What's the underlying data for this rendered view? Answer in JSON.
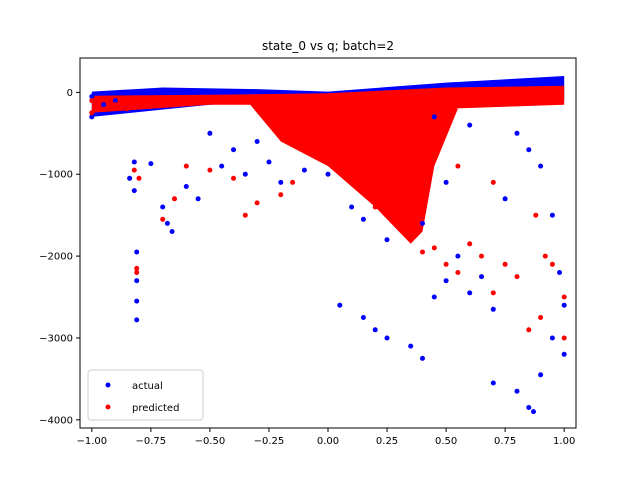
{
  "chart_data": {
    "type": "scatter",
    "title": "state_0 vs q; batch=2",
    "xlabel": "",
    "ylabel": "",
    "xlim": [
      -1.05,
      1.05
    ],
    "ylim": [
      -4100,
      420
    ],
    "xticks": [
      -1.0,
      -0.75,
      -0.5,
      -0.25,
      0.0,
      0.25,
      0.5,
      0.75,
      1.0
    ],
    "xtick_labels": [
      "−1.00",
      "−0.75",
      "−0.50",
      "−0.25",
      "0.00",
      "0.25",
      "0.50",
      "0.75",
      "1.00"
    ],
    "yticks": [
      0,
      -1000,
      -2000,
      -3000,
      -4000
    ],
    "ytick_labels": [
      "0",
      "−1000",
      "−2000",
      "−3000",
      "−4000"
    ],
    "legend_position": "lower-left",
    "grid": false,
    "series": [
      {
        "name": "actual",
        "color": "#0000ff",
        "points": [
          [
            -1.0,
            -50
          ],
          [
            -1.0,
            -300
          ],
          [
            -0.95,
            -150
          ],
          [
            -0.9,
            -100
          ],
          [
            -0.85,
            -200
          ],
          [
            -0.82,
            -850
          ],
          [
            -0.84,
            -1050
          ],
          [
            -0.82,
            -1200
          ],
          [
            -0.81,
            -1950
          ],
          [
            -0.81,
            -2300
          ],
          [
            -0.81,
            -2550
          ],
          [
            -0.81,
            -2780
          ],
          [
            -0.75,
            -870
          ],
          [
            -0.7,
            -1400
          ],
          [
            -0.68,
            -1600
          ],
          [
            -0.66,
            -1700
          ],
          [
            -0.6,
            -1150
          ],
          [
            -0.55,
            -1300
          ],
          [
            -0.5,
            -500
          ],
          [
            -0.45,
            -900
          ],
          [
            -0.4,
            -700
          ],
          [
            -0.35,
            -1000
          ],
          [
            -0.3,
            -600
          ],
          [
            -0.25,
            -850
          ],
          [
            -0.2,
            -1100
          ],
          [
            -0.1,
            -950
          ],
          [
            0.0,
            -1000
          ],
          [
            0.1,
            -1400
          ],
          [
            0.15,
            -1550
          ],
          [
            0.25,
            -1800
          ],
          [
            0.05,
            -2600
          ],
          [
            0.15,
            -2750
          ],
          [
            0.2,
            -2900
          ],
          [
            0.25,
            -3000
          ],
          [
            0.35,
            -3100
          ],
          [
            0.4,
            -3250
          ],
          [
            0.45,
            -2500
          ],
          [
            0.5,
            -2300
          ],
          [
            0.55,
            -2000
          ],
          [
            0.6,
            -2450
          ],
          [
            0.65,
            -2250
          ],
          [
            0.7,
            -2650
          ],
          [
            0.7,
            -3550
          ],
          [
            0.8,
            -3650
          ],
          [
            0.85,
            -3850
          ],
          [
            0.87,
            -3900
          ],
          [
            0.9,
            -3450
          ],
          [
            0.95,
            -3000
          ],
          [
            1.0,
            -3200
          ],
          [
            1.0,
            -2600
          ],
          [
            0.98,
            -2200
          ],
          [
            0.95,
            -1500
          ],
          [
            0.9,
            -900
          ],
          [
            0.85,
            -700
          ],
          [
            0.8,
            -500
          ],
          [
            0.6,
            -400
          ],
          [
            0.45,
            -300
          ],
          [
            0.4,
            -1600
          ],
          [
            0.5,
            -1100
          ],
          [
            0.75,
            -1300
          ]
        ]
      },
      {
        "name": "predicted",
        "color": "#ff0000",
        "points": [
          [
            -1.0,
            -100
          ],
          [
            -1.0,
            -250
          ],
          [
            -0.9,
            -150
          ],
          [
            -0.85,
            -200
          ],
          [
            -0.82,
            -950
          ],
          [
            -0.8,
            -1050
          ],
          [
            -0.81,
            -2150
          ],
          [
            -0.81,
            -2200
          ],
          [
            -0.7,
            -1550
          ],
          [
            -0.65,
            -1300
          ],
          [
            -0.6,
            -900
          ],
          [
            -0.5,
            -950
          ],
          [
            -0.4,
            -1050
          ],
          [
            -0.35,
            -1500
          ],
          [
            -0.3,
            -1350
          ],
          [
            -0.2,
            -1250
          ],
          [
            -0.15,
            -1100
          ],
          [
            0.0,
            -600
          ],
          [
            0.1,
            -1000
          ],
          [
            0.2,
            -1400
          ],
          [
            0.3,
            -1650
          ],
          [
            0.35,
            -1800
          ],
          [
            0.4,
            -1950
          ],
          [
            0.45,
            -1900
          ],
          [
            0.5,
            -2100
          ],
          [
            0.55,
            -2200
          ],
          [
            0.6,
            -1850
          ],
          [
            0.65,
            -2000
          ],
          [
            0.7,
            -2450
          ],
          [
            0.75,
            -2100
          ],
          [
            0.8,
            -2250
          ],
          [
            0.85,
            -2900
          ],
          [
            0.9,
            -2750
          ],
          [
            0.95,
            -2100
          ],
          [
            1.0,
            -2500
          ],
          [
            1.0,
            -3000
          ],
          [
            0.92,
            -2000
          ],
          [
            0.88,
            -1500
          ],
          [
            0.7,
            -1100
          ],
          [
            0.55,
            -900
          ]
        ]
      }
    ]
  }
}
